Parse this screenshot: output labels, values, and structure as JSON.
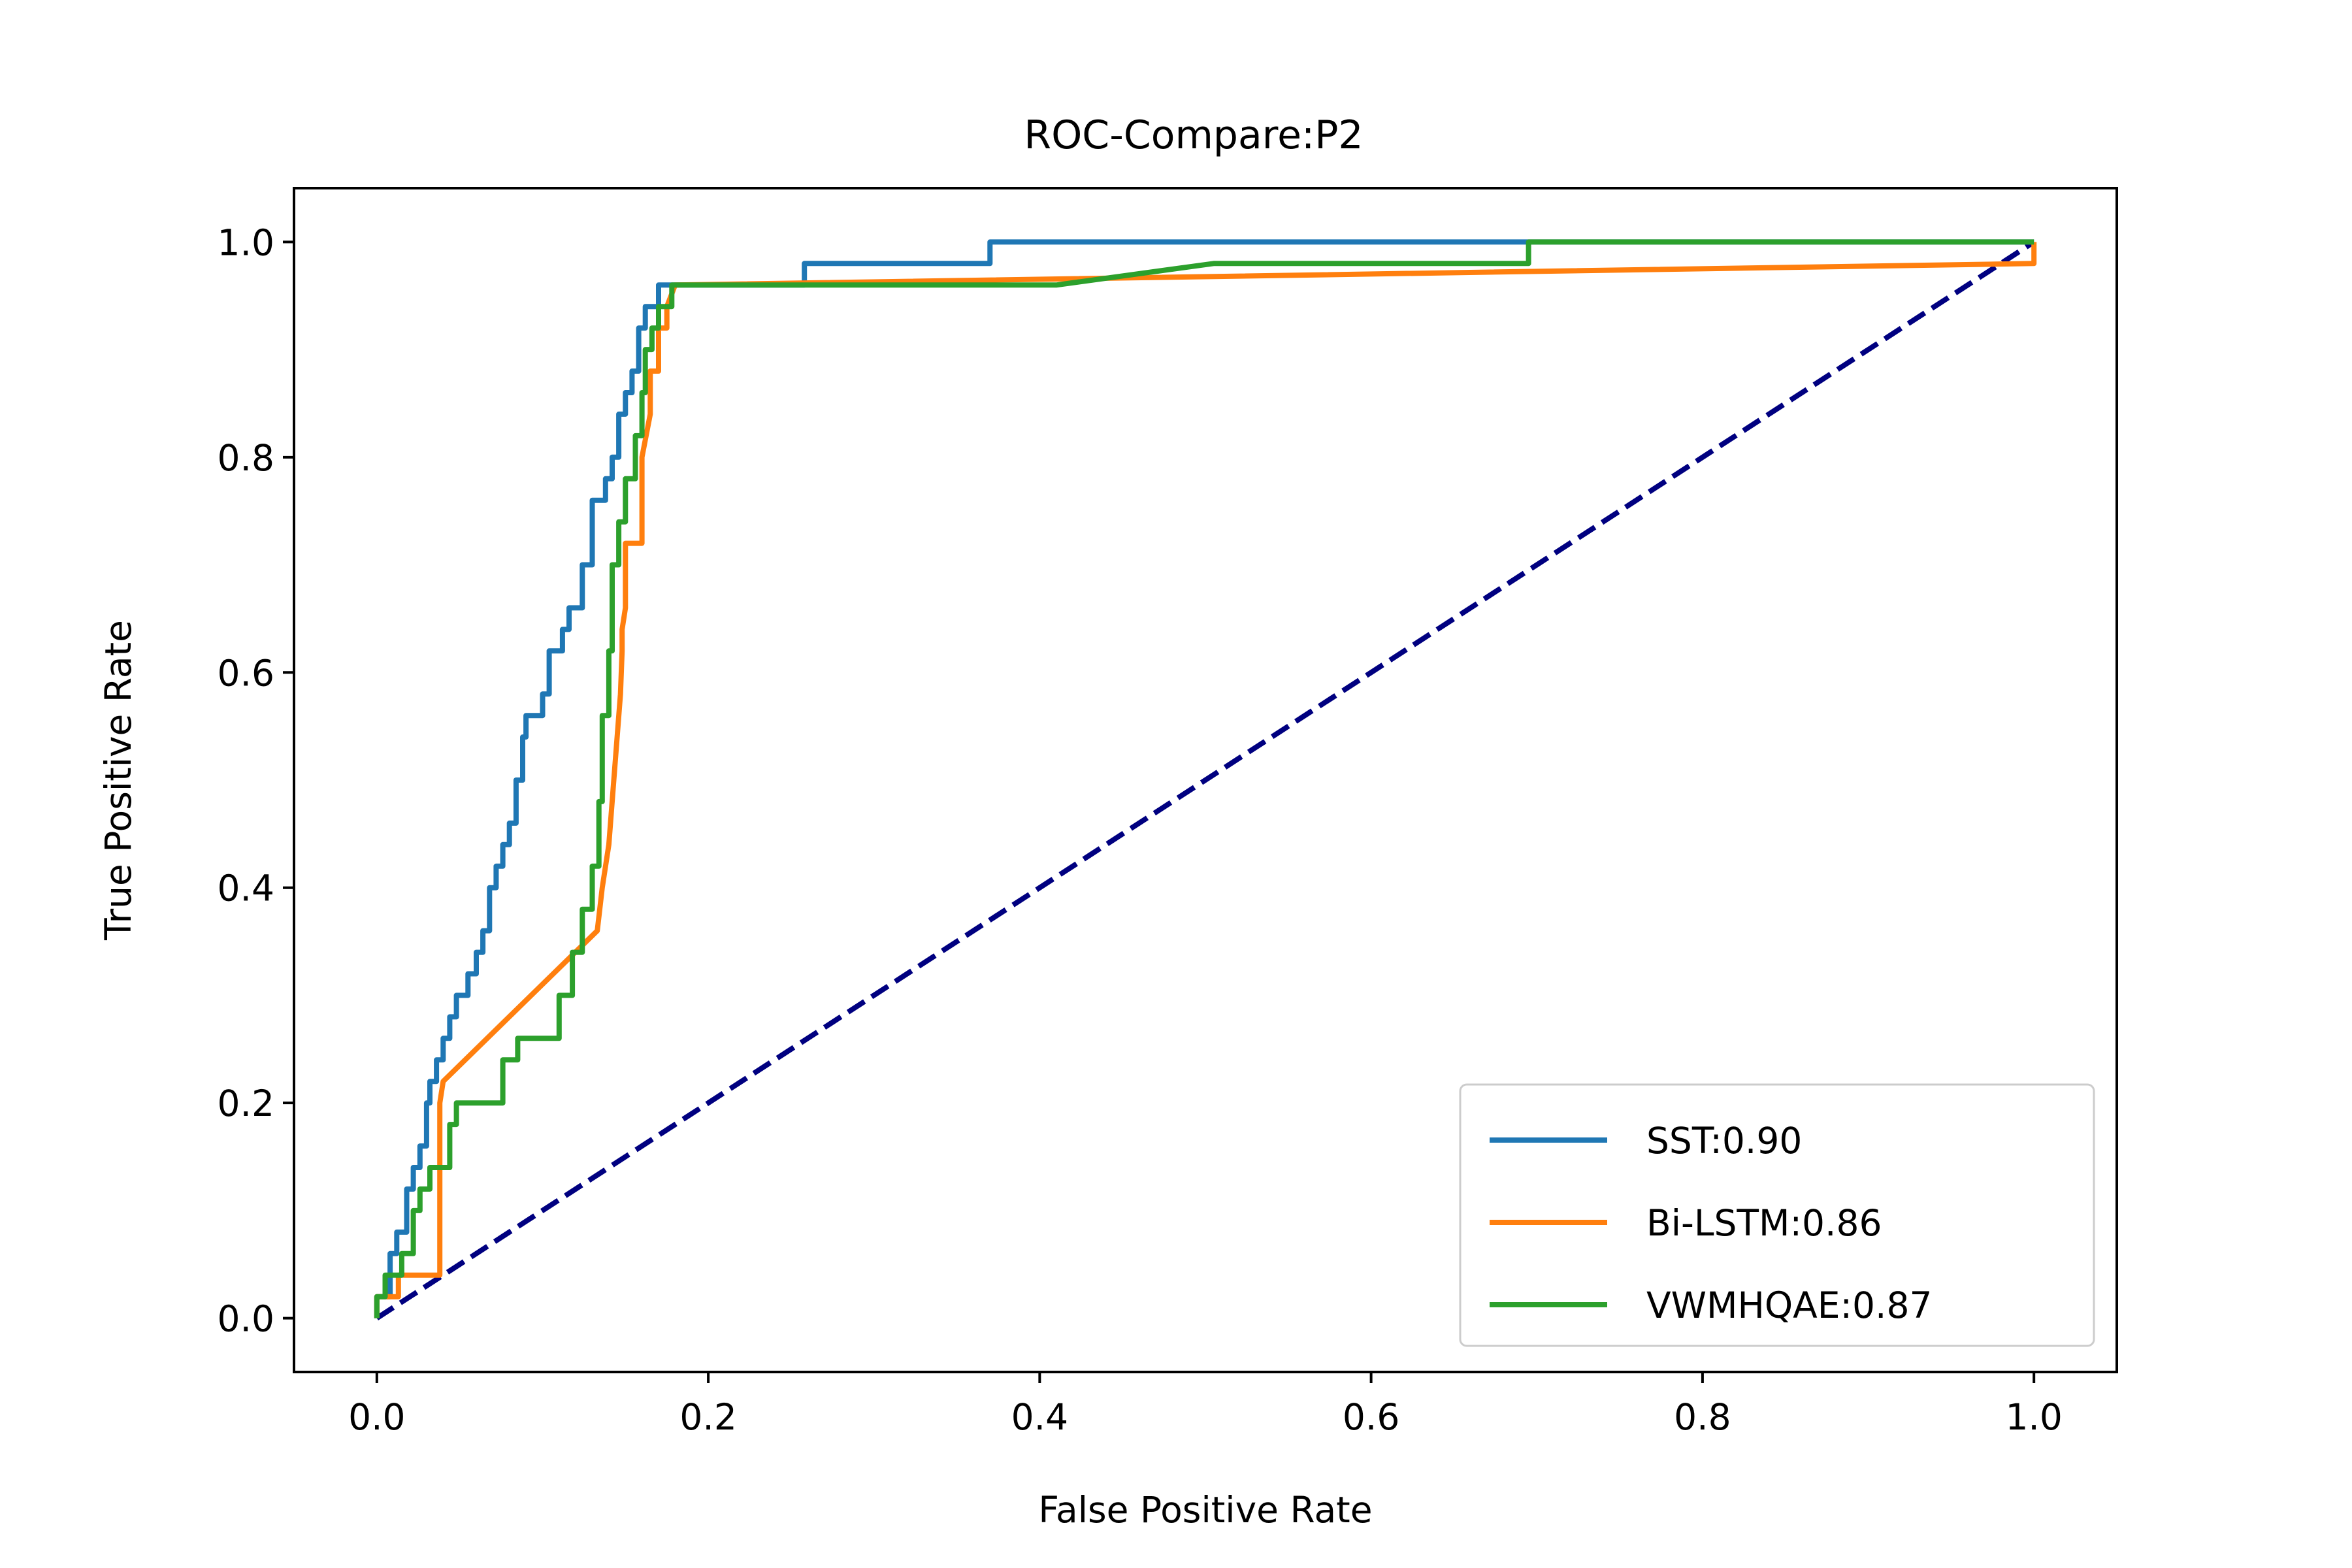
{
  "chart_data": {
    "type": "line",
    "title": "ROC-Compare:P2",
    "xlabel": "False Positive Rate",
    "ylabel": "True Positive Rate",
    "xlim": [
      -0.05,
      1.05
    ],
    "ylim": [
      -0.05,
      1.05
    ],
    "xticks": [
      0.0,
      0.2,
      0.4,
      0.6,
      0.8,
      1.0
    ],
    "yticks": [
      0.0,
      0.2,
      0.4,
      0.6,
      0.8,
      1.0
    ],
    "xtick_labels": [
      "0.0",
      "0.2",
      "0.4",
      "0.6",
      "0.8",
      "1.0"
    ],
    "ytick_labels": [
      "0.0",
      "0.2",
      "0.4",
      "0.6",
      "0.8",
      "1.0"
    ],
    "grid": false,
    "legend_position": "lower-right",
    "series": [
      {
        "name": "SST:0.90",
        "color": "#1f77b4",
        "x": [
          0.0,
          0.0,
          0.008,
          0.008,
          0.012,
          0.012,
          0.018,
          0.018,
          0.022,
          0.022,
          0.026,
          0.026,
          0.03,
          0.03,
          0.032,
          0.032,
          0.036,
          0.036,
          0.04,
          0.04,
          0.044,
          0.044,
          0.048,
          0.048,
          0.055,
          0.055,
          0.06,
          0.06,
          0.064,
          0.064,
          0.068,
          0.068,
          0.072,
          0.072,
          0.076,
          0.076,
          0.08,
          0.08,
          0.084,
          0.084,
          0.088,
          0.088,
          0.09,
          0.09,
          0.1,
          0.1,
          0.104,
          0.104,
          0.112,
          0.112,
          0.116,
          0.116,
          0.124,
          0.124,
          0.13,
          0.13,
          0.138,
          0.138,
          0.142,
          0.142,
          0.146,
          0.146,
          0.15,
          0.15,
          0.154,
          0.154,
          0.158,
          0.158,
          0.162,
          0.162,
          0.17,
          0.17,
          0.185,
          0.185,
          0.258,
          0.258,
          0.37,
          0.37,
          1.0
        ],
        "y": [
          0.0,
          0.02,
          0.02,
          0.06,
          0.06,
          0.08,
          0.08,
          0.12,
          0.12,
          0.14,
          0.14,
          0.16,
          0.16,
          0.2,
          0.2,
          0.22,
          0.22,
          0.24,
          0.24,
          0.26,
          0.26,
          0.28,
          0.28,
          0.3,
          0.3,
          0.32,
          0.32,
          0.34,
          0.34,
          0.36,
          0.36,
          0.4,
          0.4,
          0.42,
          0.42,
          0.44,
          0.44,
          0.46,
          0.46,
          0.5,
          0.5,
          0.54,
          0.54,
          0.56,
          0.56,
          0.58,
          0.58,
          0.62,
          0.62,
          0.64,
          0.64,
          0.66,
          0.66,
          0.7,
          0.7,
          0.76,
          0.76,
          0.78,
          0.78,
          0.8,
          0.8,
          0.84,
          0.84,
          0.86,
          0.86,
          0.88,
          0.88,
          0.92,
          0.92,
          0.94,
          0.94,
          0.96,
          0.96,
          0.96,
          0.96,
          0.98,
          0.98,
          1.0,
          1.0
        ]
      },
      {
        "name": "Bi-LSTM:0.86",
        "color": "#ff7f0e",
        "x": [
          0.0,
          0.0,
          0.013,
          0.013,
          0.038,
          0.038,
          0.04,
          0.133,
          0.136,
          0.14,
          0.143,
          0.147,
          0.148,
          0.148,
          0.15,
          0.15,
          0.16,
          0.16,
          0.165,
          0.165,
          0.17,
          0.17,
          0.175,
          0.175,
          0.18,
          1.0,
          1.0
        ],
        "y": [
          0.0,
          0.02,
          0.02,
          0.04,
          0.04,
          0.2,
          0.22,
          0.36,
          0.4,
          0.44,
          0.5,
          0.58,
          0.62,
          0.64,
          0.66,
          0.72,
          0.72,
          0.8,
          0.84,
          0.88,
          0.88,
          0.92,
          0.92,
          0.94,
          0.96,
          0.98,
          1.0
        ]
      },
      {
        "name": "VWMHQAE:0.87",
        "color": "#2ca02c",
        "x": [
          0.0,
          0.0,
          0.005,
          0.005,
          0.015,
          0.015,
          0.022,
          0.022,
          0.026,
          0.026,
          0.032,
          0.032,
          0.044,
          0.044,
          0.048,
          0.048,
          0.076,
          0.076,
          0.085,
          0.085,
          0.11,
          0.11,
          0.118,
          0.118,
          0.124,
          0.124,
          0.13,
          0.13,
          0.134,
          0.134,
          0.136,
          0.136,
          0.14,
          0.14,
          0.142,
          0.142,
          0.146,
          0.146,
          0.15,
          0.15,
          0.156,
          0.156,
          0.16,
          0.16,
          0.162,
          0.162,
          0.166,
          0.166,
          0.17,
          0.17,
          0.178,
          0.178,
          0.41,
          0.505,
          0.695,
          0.695,
          1.0
        ],
        "y": [
          0.0,
          0.02,
          0.02,
          0.04,
          0.04,
          0.06,
          0.06,
          0.1,
          0.1,
          0.12,
          0.12,
          0.14,
          0.14,
          0.18,
          0.18,
          0.2,
          0.2,
          0.24,
          0.24,
          0.26,
          0.26,
          0.3,
          0.3,
          0.34,
          0.34,
          0.38,
          0.38,
          0.42,
          0.42,
          0.48,
          0.48,
          0.56,
          0.56,
          0.62,
          0.62,
          0.7,
          0.7,
          0.74,
          0.74,
          0.78,
          0.78,
          0.82,
          0.82,
          0.86,
          0.86,
          0.9,
          0.9,
          0.92,
          0.92,
          0.94,
          0.94,
          0.96,
          0.96,
          0.98,
          0.98,
          1.0,
          1.0
        ]
      },
      {
        "name": "",
        "color": "#000080",
        "dashed": true,
        "x": [
          0.0,
          1.0
        ],
        "y": [
          0.0,
          1.0
        ]
      }
    ]
  }
}
